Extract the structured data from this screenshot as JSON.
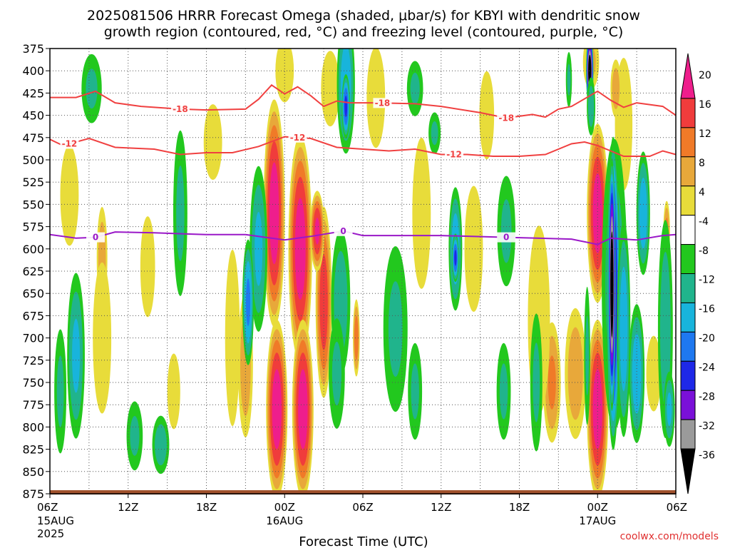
{
  "chart_data": {
    "type": "heatmap",
    "title_line1": "2025081506 HRRR Forecast Omega (shaded, μbar/s) for KBYI with dendritic snow",
    "title_line2": "growth region (contoured, red, °C) and freezing level (contoured, purple, °C)",
    "xlabel": "Forecast Time (UTC)",
    "credit": "coolwx.com/models",
    "y_ticks": [
      "375",
      "400",
      "425",
      "450",
      "475",
      "500",
      "525",
      "550",
      "575",
      "600",
      "625",
      "650",
      "675",
      "700",
      "725",
      "750",
      "775",
      "800",
      "825",
      "850",
      "875"
    ],
    "ylim": [
      875,
      375
    ],
    "x_ticks": [
      {
        "h": 0,
        "label": "06Z",
        "date": "15AUG",
        "year": "2025"
      },
      {
        "h": 6,
        "label": "12Z",
        "date": "",
        "year": ""
      },
      {
        "h": 12,
        "label": "18Z",
        "date": "",
        "year": ""
      },
      {
        "h": 18,
        "label": "00Z",
        "date": "16AUG",
        "year": ""
      },
      {
        "h": 24,
        "label": "06Z",
        "date": "",
        "year": ""
      },
      {
        "h": 30,
        "label": "12Z",
        "date": "",
        "year": ""
      },
      {
        "h": 36,
        "label": "18Z",
        "date": "",
        "year": ""
      },
      {
        "h": 42,
        "label": "00Z",
        "date": "17AUG",
        "year": ""
      },
      {
        "h": 48,
        "label": "06Z",
        "date": "",
        "year": ""
      }
    ],
    "xlim": [
      0,
      48
    ],
    "colorbar": {
      "labels": [
        "20",
        "16",
        "12",
        "8",
        "4",
        "-4",
        "-8",
        "-12",
        "-16",
        "-20",
        "-24",
        "-28",
        "-32",
        "-36"
      ],
      "colors": [
        "#ee1e8c",
        "#f03c3c",
        "#f07a28",
        "#e8a83a",
        "#e8dc3a",
        "#ffffff",
        "#22c81e",
        "#20b48c",
        "#18b4dc",
        "#1e78f0",
        "#1e28e8",
        "#7a10d8",
        "#9a9a9a",
        "#000000"
      ]
    },
    "contours": [
      {
        "name": "-18",
        "color": "#f04040",
        "label_at": [
          10,
          25.5,
          35
        ],
        "points": [
          [
            0,
            430
          ],
          [
            2,
            430
          ],
          [
            3.5,
            423
          ],
          [
            5,
            436
          ],
          [
            7,
            440
          ],
          [
            10,
            443
          ],
          [
            12,
            444
          ],
          [
            15,
            443
          ],
          [
            16,
            432
          ],
          [
            17,
            416
          ],
          [
            18,
            426
          ],
          [
            19,
            418
          ],
          [
            20,
            428
          ],
          [
            21,
            440
          ],
          [
            22,
            434
          ],
          [
            23,
            436
          ],
          [
            25,
            436
          ],
          [
            28,
            437
          ],
          [
            30,
            440
          ],
          [
            33,
            447
          ],
          [
            35,
            453
          ],
          [
            37,
            449
          ],
          [
            38,
            452
          ],
          [
            39,
            443
          ],
          [
            40,
            440
          ],
          [
            42,
            423
          ],
          [
            43,
            433
          ],
          [
            44,
            441
          ],
          [
            45,
            436
          ],
          [
            47,
            440
          ],
          [
            48,
            450
          ]
        ]
      },
      {
        "name": "-12",
        "color": "#f04040",
        "label_at": [
          1.5,
          19,
          31
        ],
        "points": [
          [
            0,
            477
          ],
          [
            1,
            484
          ],
          [
            3,
            476
          ],
          [
            5,
            486
          ],
          [
            8,
            488
          ],
          [
            10,
            494
          ],
          [
            12,
            492
          ],
          [
            14,
            492
          ],
          [
            16,
            485
          ],
          [
            18,
            474
          ],
          [
            20,
            476
          ],
          [
            22,
            486
          ],
          [
            24,
            488
          ],
          [
            26,
            490
          ],
          [
            28,
            488
          ],
          [
            30,
            494
          ],
          [
            32,
            494
          ],
          [
            34,
            496
          ],
          [
            36,
            496
          ],
          [
            38,
            494
          ],
          [
            40,
            482
          ],
          [
            41,
            480
          ],
          [
            42,
            484
          ],
          [
            44,
            496
          ],
          [
            46,
            496
          ],
          [
            47,
            490
          ],
          [
            48,
            494
          ]
        ]
      },
      {
        "name": "0",
        "color": "#9a18c8",
        "label_at": [
          3.5,
          22.5,
          35
        ],
        "points": [
          [
            0,
            584
          ],
          [
            2,
            588
          ],
          [
            3.5,
            587
          ],
          [
            5,
            581
          ],
          [
            8,
            582
          ],
          [
            12,
            584
          ],
          [
            15,
            584
          ],
          [
            18,
            590
          ],
          [
            20,
            586
          ],
          [
            22.5,
            580
          ],
          [
            24,
            585
          ],
          [
            30,
            585
          ],
          [
            35,
            587
          ],
          [
            40,
            589
          ],
          [
            42,
            595
          ],
          [
            43,
            588
          ],
          [
            45,
            590
          ],
          [
            47,
            585
          ],
          [
            48,
            584
          ]
        ]
      }
    ],
    "omega_cells": [
      {
        "h": 17.2,
        "p": 560,
        "rh": 0.9,
        "rp": 140,
        "v": 22
      },
      {
        "h": 17.4,
        "p": 780,
        "rh": 0.9,
        "rp": 110,
        "v": 22
      },
      {
        "h": 19.2,
        "p": 600,
        "rh": 1.0,
        "rp": 140,
        "v": 22
      },
      {
        "h": 19.4,
        "p": 780,
        "rh": 0.9,
        "rp": 110,
        "v": 22
      },
      {
        "h": 21.0,
        "p": 660,
        "rh": 0.7,
        "rp": 120,
        "v": 18
      },
      {
        "h": 20.5,
        "p": 580,
        "rh": 0.6,
        "rp": 50,
        "v": 20
      },
      {
        "h": 23.5,
        "p": 700,
        "rh": 0.3,
        "rp": 50,
        "v": 14
      },
      {
        "h": 42.0,
        "p": 560,
        "rh": 0.9,
        "rp": 110,
        "v": 22
      },
      {
        "h": 42.0,
        "p": 780,
        "rh": 0.9,
        "rp": 110,
        "v": 22
      },
      {
        "h": 40.3,
        "p": 740,
        "rh": 1.0,
        "rp": 90,
        "v": 10
      },
      {
        "h": 44.0,
        "p": 460,
        "rh": 0.9,
        "rp": 100,
        "v": 7
      },
      {
        "h": 43.4,
        "p": 420,
        "rh": 0.5,
        "rp": 40,
        "v": 10
      },
      {
        "h": 47.3,
        "p": 580,
        "rh": 0.3,
        "rp": 40,
        "v": 12
      },
      {
        "h": 41.5,
        "p": 390,
        "rh": 0.8,
        "rp": 40,
        "v": 8
      },
      {
        "h": 4.0,
        "p": 610,
        "rh": 0.5,
        "rp": 70,
        "v": 10
      },
      {
        "h": 4.0,
        "p": 700,
        "rh": 1.0,
        "rp": 120,
        "v": 6
      },
      {
        "h": 15.0,
        "p": 730,
        "rh": 0.7,
        "rp": 100,
        "v": 10
      },
      {
        "h": 14.0,
        "p": 700,
        "rh": 0.8,
        "rp": 140,
        "v": 6
      },
      {
        "h": 21.5,
        "p": 420,
        "rh": 1.0,
        "rp": 60,
        "v": 6
      },
      {
        "h": 18.0,
        "p": 400,
        "rh": 1.0,
        "rp": 50,
        "v": 6
      },
      {
        "h": 28.5,
        "p": 560,
        "rh": 1.0,
        "rp": 120,
        "v": 6
      },
      {
        "h": 32.5,
        "p": 600,
        "rh": 1.0,
        "rp": 100,
        "v": 6
      },
      {
        "h": 38.5,
        "p": 750,
        "rh": 0.8,
        "rp": 80,
        "v": 12
      },
      {
        "h": 37.5,
        "p": 680,
        "rh": 1.2,
        "rp": 150,
        "v": 6
      },
      {
        "h": 46.3,
        "p": 740,
        "rh": 0.8,
        "rp": 60,
        "v": 6
      },
      {
        "h": 25.0,
        "p": 430,
        "rh": 1.0,
        "rp": 80,
        "v": 6
      },
      {
        "h": 12.5,
        "p": 480,
        "rh": 1.0,
        "rp": 60,
        "v": 6
      },
      {
        "h": 9.5,
        "p": 760,
        "rh": 0.7,
        "rp": 60,
        "v": 6
      },
      {
        "h": 7.5,
        "p": 620,
        "rh": 0.8,
        "rp": 80,
        "v": 6
      },
      {
        "h": 1.5,
        "p": 540,
        "rh": 1.0,
        "rp": 80,
        "v": 6
      },
      {
        "h": 33.5,
        "p": 450,
        "rh": 0.8,
        "rp": 70,
        "v": 6
      },
      {
        "h": 2.0,
        "p": 720,
        "rh": 0.8,
        "rp": 110,
        "v": -12
      },
      {
        "h": 0.8,
        "p": 760,
        "rh": 0.6,
        "rp": 90,
        "v": -8
      },
      {
        "h": 3.2,
        "p": 420,
        "rh": 1.0,
        "rp": 50,
        "v": -8
      },
      {
        "h": 10.0,
        "p": 560,
        "rh": 0.7,
        "rp": 120,
        "v": -8
      },
      {
        "h": 6.5,
        "p": 810,
        "rh": 0.8,
        "rp": 50,
        "v": -8
      },
      {
        "h": 8.5,
        "p": 820,
        "rh": 0.8,
        "rp": 40,
        "v": -10
      },
      {
        "h": 16.0,
        "p": 600,
        "rh": 0.8,
        "rp": 110,
        "v": -12
      },
      {
        "h": 15.2,
        "p": 660,
        "rh": 0.5,
        "rp": 80,
        "v": -16
      },
      {
        "h": 22.7,
        "p": 415,
        "rh": 0.8,
        "rp": 90,
        "v": -14
      },
      {
        "h": 22.7,
        "p": 440,
        "rh": 0.35,
        "rp": 40,
        "v": -20
      },
      {
        "h": 22.3,
        "p": 660,
        "rh": 0.9,
        "rp": 100,
        "v": -10
      },
      {
        "h": 22.0,
        "p": 740,
        "rh": 0.8,
        "rp": 80,
        "v": -8
      },
      {
        "h": 26.5,
        "p": 690,
        "rh": 1.2,
        "rp": 120,
        "v": -8
      },
      {
        "h": 28.0,
        "p": 760,
        "rh": 0.7,
        "rp": 70,
        "v": -8
      },
      {
        "h": 28.0,
        "p": 420,
        "rh": 0.8,
        "rp": 40,
        "v": -8
      },
      {
        "h": 31.1,
        "p": 600,
        "rh": 0.6,
        "rp": 80,
        "v": -14
      },
      {
        "h": 31.1,
        "p": 610,
        "rh": 0.3,
        "rp": 30,
        "v": -20
      },
      {
        "h": 29.5,
        "p": 470,
        "rh": 0.6,
        "rp": 30,
        "v": -8
      },
      {
        "h": 35.0,
        "p": 580,
        "rh": 0.9,
        "rp": 80,
        "v": -8
      },
      {
        "h": 34.8,
        "p": 760,
        "rh": 0.7,
        "rp": 70,
        "v": -8
      },
      {
        "h": 37.3,
        "p": 750,
        "rh": 0.6,
        "rp": 100,
        "v": -8
      },
      {
        "h": 39.8,
        "p": 410,
        "rh": 0.3,
        "rp": 40,
        "v": -8
      },
      {
        "h": 43.3,
        "p": 640,
        "rh": 1.2,
        "rp": 200,
        "v": -10
      },
      {
        "h": 43.2,
        "p": 650,
        "rh": 0.55,
        "rp": 190,
        "v": -26
      },
      {
        "h": 43.1,
        "p": 640,
        "rh": 0.3,
        "rp": 150,
        "v": -36
      },
      {
        "h": 44.0,
        "p": 690,
        "rh": 0.6,
        "rp": 140,
        "v": -14
      },
      {
        "h": 45.0,
        "p": 740,
        "rh": 0.7,
        "rp": 90,
        "v": -14
      },
      {
        "h": 45.5,
        "p": 560,
        "rh": 0.6,
        "rp": 80,
        "v": -14
      },
      {
        "h": 47.2,
        "p": 690,
        "rh": 0.7,
        "rp": 150,
        "v": -10
      },
      {
        "h": 47.5,
        "p": 780,
        "rh": 0.5,
        "rp": 50,
        "v": -12
      },
      {
        "h": 41.4,
        "p": 400,
        "rh": 0.3,
        "rp": 45,
        "v": -36
      },
      {
        "h": 41.5,
        "p": 440,
        "rh": 0.4,
        "rp": 40,
        "v": -10
      },
      {
        "h": 41.2,
        "p": 720,
        "rh": 0.3,
        "rp": 100,
        "v": -8
      }
    ]
  }
}
